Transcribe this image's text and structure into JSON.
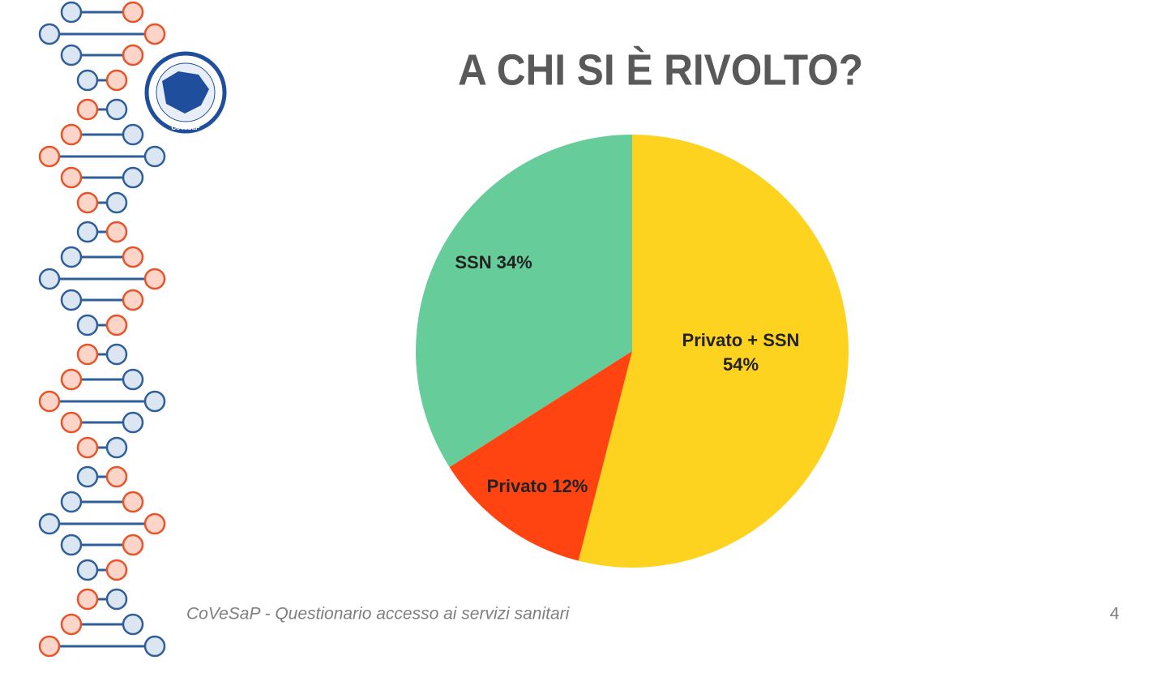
{
  "chart_data": {
    "type": "pie",
    "title": "A CHI SI È RIVOLTO?",
    "categories": [
      "Privato + SSN",
      "Privato",
      "SSN"
    ],
    "values": [
      54,
      12,
      34
    ],
    "value_labels": [
      "54%",
      "12%",
      "34%"
    ],
    "colors": [
      "#fdd320",
      "#ff4411",
      "#66cc99"
    ]
  },
  "logo": {
    "text": "CoVeSaP"
  },
  "footer": {
    "text": "CoVeSaP - Questionario accesso ai servizi sanitari",
    "page": "4"
  }
}
